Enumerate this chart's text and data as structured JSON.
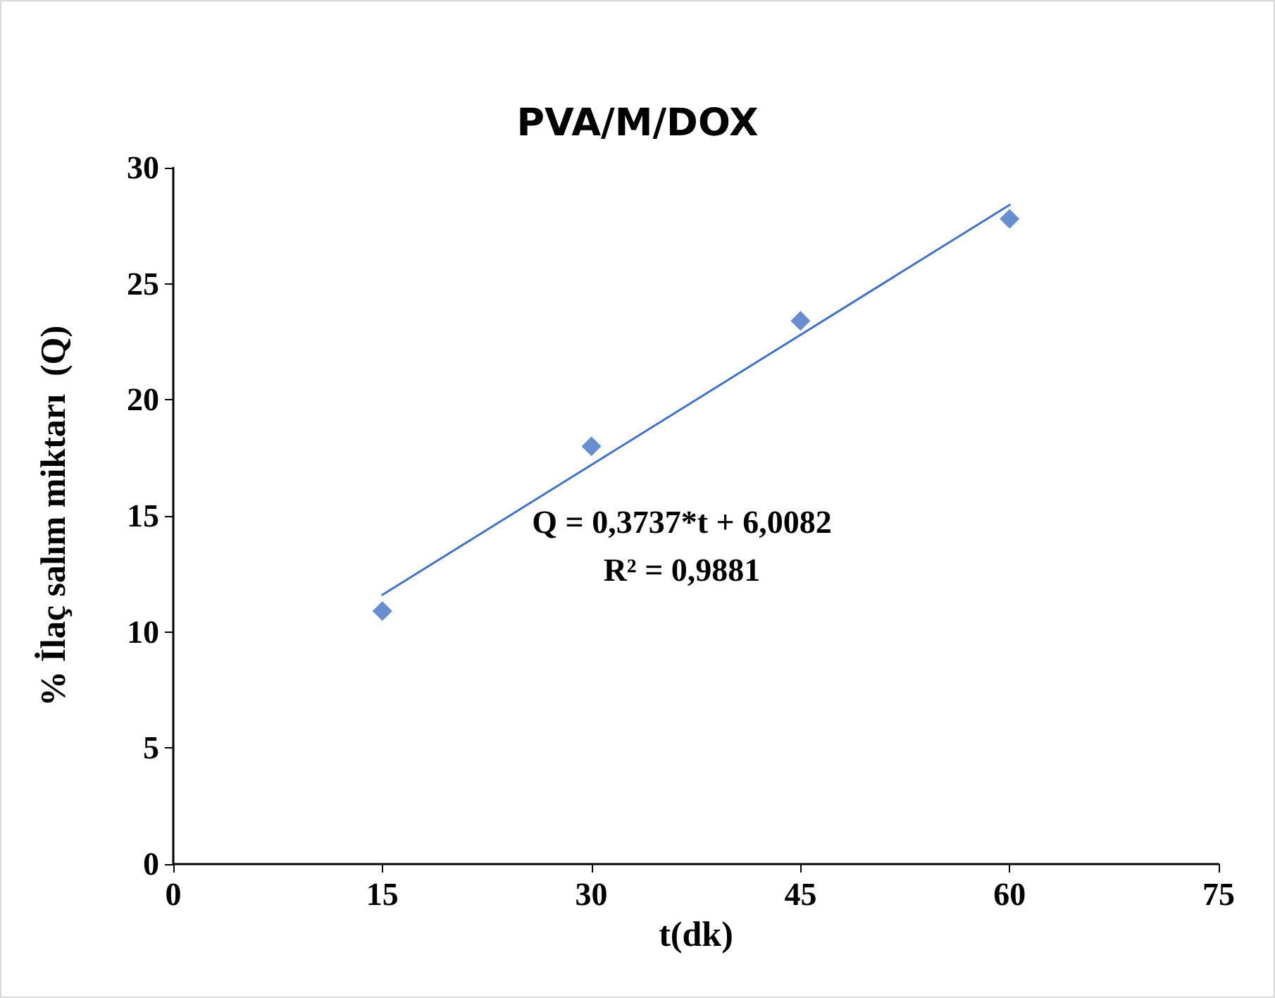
{
  "chart_data": {
    "type": "scatter",
    "title": "PVA/M/DOX",
    "xlabel": "t(dk)",
    "ylabel": "% İlaç salım miktarı  (Q)",
    "series": [
      {
        "color": "#4472c4",
        "marker": "diamond",
        "x": [
          15,
          30,
          45,
          60
        ],
        "values": [
          10.9,
          18.0,
          23.4,
          27.8
        ]
      },
      {
        "type": "line",
        "color": "#4472c4",
        "marker": "none",
        "line_style": "solid",
        "x": [
          15,
          60
        ],
        "values": [
          11.6,
          28.4
        ]
      }
    ],
    "annotations": [
      "Q = 0,3737*t + 6,0082",
      "R² = 0,9881"
    ],
    "xlim": [
      0,
      75
    ],
    "xticks": [
      0,
      15,
      30,
      45,
      60,
      75
    ],
    "ylim": [
      0,
      30
    ],
    "yticks": [
      0,
      5,
      10,
      15,
      20,
      25,
      30
    ],
    "grid": false
  }
}
